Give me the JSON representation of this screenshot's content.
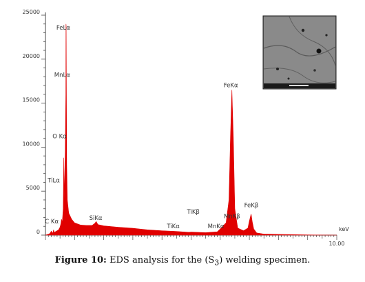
{
  "chart_data": {
    "type": "area",
    "title": "",
    "xlabel": "keV",
    "ylabel": "",
    "xlim": [
      0,
      10
    ],
    "ylim": [
      0,
      25000
    ],
    "x_tick_labels": [
      {
        "x": 10,
        "label": "10.00"
      }
    ],
    "y_ticks": [
      0,
      5000,
      10000,
      15000,
      20000,
      25000
    ],
    "y_tick_labels": [
      "0",
      "5000",
      "10000",
      "15000",
      "20000",
      "25000"
    ],
    "series": [
      {
        "color": "#e00000",
        "x": [
          0.0,
          0.1,
          0.16,
          0.2,
          0.25,
          0.28,
          0.3,
          0.4,
          0.45,
          0.5,
          0.53,
          0.55,
          0.58,
          0.61,
          0.63,
          0.65,
          0.67,
          0.68,
          0.7,
          0.705,
          0.71,
          0.72,
          0.73,
          0.75,
          0.8,
          0.9,
          1.0,
          1.2,
          1.4,
          1.6,
          1.7,
          1.74,
          1.8,
          2.0,
          2.5,
          3.0,
          3.5,
          4.0,
          4.5,
          4.93,
          5.0,
          5.5,
          5.9,
          6.0,
          6.2,
          6.3,
          6.35,
          6.4,
          6.45,
          6.5,
          6.6,
          6.8,
          6.95,
          7.0,
          7.06,
          7.1,
          7.15,
          7.25,
          7.5,
          8.0,
          8.5,
          9.0,
          9.5,
          10.0
        ],
        "y": [
          0,
          100,
          200,
          450,
          200,
          600,
          300,
          500,
          600,
          900,
          1300,
          1800,
          1500,
          3000,
          8800,
          4200,
          8000,
          9500,
          16000,
          24000,
          23800,
          16000,
          8000,
          4000,
          2500,
          1800,
          1400,
          1150,
          1100,
          1100,
          1350,
          1550,
          1200,
          1050,
          900,
          780,
          600,
          500,
          420,
          320,
          350,
          280,
          380,
          700,
          1400,
          4000,
          11000,
          16500,
          11000,
          3000,
          800,
          500,
          800,
          1600,
          2400,
          1500,
          700,
          250,
          120,
          80,
          50,
          30,
          10,
          0
        ]
      }
    ],
    "peak_labels": [
      {
        "label": "FeLα",
        "x": 0.705,
        "y": 24000
      },
      {
        "label": "MnLα",
        "x": 0.68,
        "y": 18000
      },
      {
        "label": "O Kα",
        "x": 0.62,
        "y": 11000
      },
      {
        "label": "TiLα",
        "x": 0.55,
        "y": 6000
      },
      {
        "label": "C Kα",
        "x": 0.22,
        "y": 1000
      },
      {
        "label": "SiKα",
        "x": 1.74,
        "y": 1400
      },
      {
        "label": "TiKβ",
        "x": 4.93,
        "y": 1800
      },
      {
        "label": "TiKα",
        "x": 4.5,
        "y": 800
      },
      {
        "label": "MnKα",
        "x": 5.9,
        "y": 800
      },
      {
        "label": "MnKβ",
        "x": 6.5,
        "y": 1600
      },
      {
        "label": "FeKα",
        "x": 6.4,
        "y": 16500
      },
      {
        "label": "FeKβ",
        "x": 7.06,
        "y": 2800
      }
    ]
  },
  "caption": {
    "figure_label": "Figure 10:",
    "text_before": " EDS analysis for the (S",
    "subscript": "3",
    "text_after": ") welding specimen."
  },
  "inset": {
    "description": ""
  }
}
